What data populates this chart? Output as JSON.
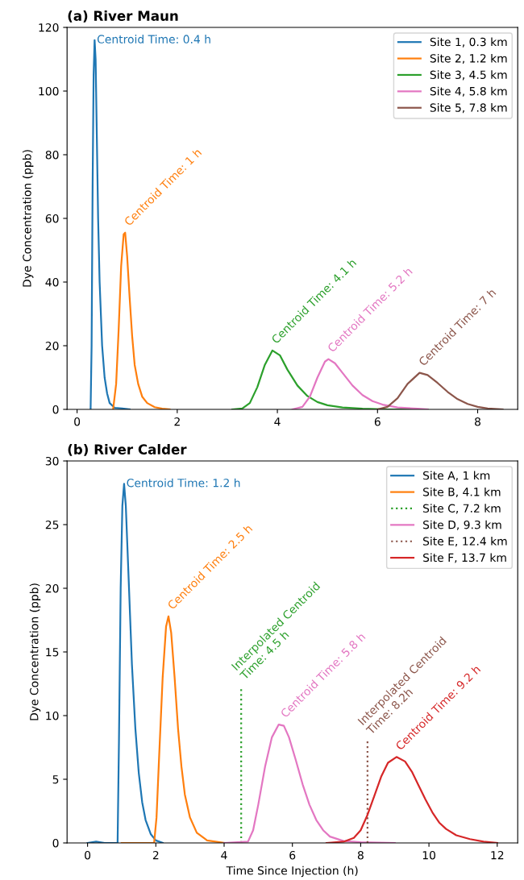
{
  "chart_data": [
    {
      "type": "line",
      "title": "(a) River Maun",
      "ylabel": "Dye Concentration (ppb)",
      "xlim": [
        -0.2,
        8.8
      ],
      "xticks": [
        0,
        2,
        4,
        6,
        8
      ],
      "ylim": [
        0,
        120
      ],
      "yticks": [
        0,
        20,
        40,
        60,
        80,
        100,
        120
      ],
      "grid": false,
      "legend": "top right",
      "series": [
        {
          "name": "Site 1, 0.3 km",
          "color": "#1f77b4",
          "x": [
            0.27,
            0.29,
            0.31,
            0.33,
            0.35,
            0.37,
            0.39,
            0.42,
            0.45,
            0.5,
            0.55,
            0.6,
            0.65,
            0.75,
            0.9,
            1.05
          ],
          "values": [
            0,
            20,
            70,
            105,
            116,
            110,
            90,
            60,
            40,
            20,
            10,
            5,
            2,
            0.5,
            0.3,
            0
          ]
        },
        {
          "name": "Site 2, 1.2 km",
          "color": "#ff7f0e",
          "x": [
            0.72,
            0.78,
            0.83,
            0.88,
            0.93,
            0.96,
            1.0,
            1.05,
            1.1,
            1.15,
            1.22,
            1.3,
            1.4,
            1.55,
            1.7,
            1.85
          ],
          "values": [
            0,
            8,
            25,
            45,
            55,
            55.5,
            48,
            35,
            23,
            14,
            8,
            4,
            2,
            0.7,
            0.2,
            0
          ]
        },
        {
          "name": "Site 3, 4.5 km",
          "color": "#2ca02c",
          "x": [
            3.1,
            3.3,
            3.45,
            3.6,
            3.75,
            3.9,
            4.05,
            4.2,
            4.4,
            4.6,
            4.8,
            5.0,
            5.3,
            5.7,
            6.2,
            7.0
          ],
          "values": [
            0,
            0.3,
            2,
            7,
            14,
            18.5,
            17,
            12.5,
            7.5,
            4.2,
            2.3,
            1.3,
            0.6,
            0.2,
            0,
            0
          ]
        },
        {
          "name": "Site 4, 5.8 km",
          "color": "#e377c2",
          "x": [
            4.3,
            4.5,
            4.65,
            4.8,
            4.95,
            5.02,
            5.15,
            5.3,
            5.5,
            5.7,
            5.9,
            6.1,
            6.4,
            6.8,
            7.0
          ],
          "values": [
            0,
            0.8,
            4,
            10,
            15,
            15.8,
            14.5,
            11.5,
            7.5,
            4.5,
            2.6,
            1.5,
            0.6,
            0.2,
            0
          ]
        },
        {
          "name": "Site 5, 7.8 km",
          "color": "#8c564b",
          "x": [
            6.0,
            6.2,
            6.4,
            6.6,
            6.84,
            7.0,
            7.2,
            7.4,
            7.6,
            7.8,
            8.0,
            8.2,
            8.5
          ],
          "values": [
            0,
            0.8,
            3.5,
            8,
            11.5,
            10.8,
            8.3,
            5.5,
            3.2,
            1.7,
            0.8,
            0.3,
            0
          ]
        }
      ],
      "annotations": [
        {
          "text": "Centroid Time: 0.4 h",
          "x": 0.35,
          "y": 116
        },
        {
          "text": "Centroid Time: 1 h",
          "x": 0.96,
          "y": 55.5
        },
        {
          "text": "Centroid Time: 4.1 h",
          "x": 3.9,
          "y": 18.5
        },
        {
          "text": "Centroid Time: 5.2 h",
          "x": 5.02,
          "y": 15.8
        },
        {
          "text": "Centroid Time: 7 h",
          "x": 6.84,
          "y": 11.5
        }
      ]
    },
    {
      "type": "line",
      "title": "(b) River Calder",
      "xlabel": "Time Since Injection (h)",
      "ylabel": "Dye Concentration (ppb)",
      "xlim": [
        -0.6,
        12.6
      ],
      "xticks": [
        0,
        2,
        4,
        6,
        8,
        10,
        12
      ],
      "ylim": [
        0,
        30
      ],
      "yticks": [
        0,
        5,
        10,
        15,
        20,
        25,
        30
      ],
      "grid": false,
      "legend": "top right",
      "series": [
        {
          "name": "Site A, 1 km",
          "color": "#1f77b4",
          "x": [
            0,
            0.25,
            0.5,
            0.88,
            0.92,
            0.97,
            1.02,
            1.07,
            1.12,
            1.2,
            1.3,
            1.4,
            1.5,
            1.6,
            1.7,
            1.85,
            2.0,
            2.2
          ],
          "values": [
            0,
            0.1,
            0,
            0,
            8,
            20,
            26.5,
            28.2,
            26.5,
            21,
            14,
            9,
            5.5,
            3.2,
            1.8,
            0.7,
            0.2,
            0
          ]
        },
        {
          "name": "Site B, 4.1 km",
          "color": "#ff7f0e",
          "x": [
            1.0,
            1.95,
            2.02,
            2.1,
            2.2,
            2.3,
            2.37,
            2.45,
            2.55,
            2.65,
            2.75,
            2.85,
            3.0,
            3.2,
            3.5,
            4.0
          ],
          "values": [
            0,
            0,
            2,
            7,
            13,
            17,
            17.8,
            16.5,
            13,
            9,
            6,
            3.8,
            2,
            0.8,
            0.2,
            0
          ]
        },
        {
          "name": "Site C, 7.2 km",
          "color": "#2ca02c",
          "line_style": "dotted",
          "x": [
            4.5,
            4.5
          ],
          "values": [
            0,
            12.3
          ]
        },
        {
          "name": "Site D, 9.3 km",
          "color": "#e377c2",
          "x": [
            4.0,
            4.7,
            4.85,
            5.0,
            5.2,
            5.4,
            5.6,
            5.75,
            5.9,
            6.1,
            6.3,
            6.5,
            6.7,
            6.9,
            7.1,
            7.5,
            8.0,
            9.0
          ],
          "values": [
            0,
            0.1,
            1,
            3,
            6,
            8.3,
            9.3,
            9.2,
            8.3,
            6.5,
            4.6,
            3,
            1.8,
            1,
            0.5,
            0.15,
            0.05,
            0
          ]
        },
        {
          "name": "Site E, 12.4 km",
          "color": "#8c564b",
          "line_style": "dotted",
          "x": [
            8.2,
            8.2
          ],
          "values": [
            0,
            8.0
          ]
        },
        {
          "name": "Site F, 13.7 km",
          "color": "#d62728",
          "x": [
            7.0,
            7.5,
            7.8,
            8.0,
            8.2,
            8.4,
            8.6,
            8.8,
            9.05,
            9.3,
            9.5,
            9.7,
            9.9,
            10.1,
            10.3,
            10.5,
            10.8,
            11.2,
            11.6,
            12.0
          ],
          "values": [
            0,
            0.1,
            0.4,
            1,
            2.2,
            3.7,
            5.2,
            6.3,
            6.75,
            6.4,
            5.6,
            4.5,
            3.4,
            2.4,
            1.6,
            1.1,
            0.6,
            0.3,
            0.1,
            0
          ]
        }
      ],
      "annotations": [
        {
          "text": "Centroid Time: 1.2 h",
          "x": 1.07,
          "y": 28.2
        },
        {
          "text": "Centroid Time: 2.5 h",
          "x": 2.37,
          "y": 17.8
        },
        {
          "text": "Interpolated Centroid\nTime: 4.5 h",
          "x": 4.5,
          "y": 12.3
        },
        {
          "text": "Centroid Time: 5.8 h",
          "x": 5.68,
          "y": 9.3
        },
        {
          "text": "Interpolated Centroid\nTime: 8.2h",
          "x": 8.2,
          "y": 8.0
        },
        {
          "text": "Centroid Time: 9.2 h",
          "x": 9.05,
          "y": 6.75
        }
      ]
    }
  ]
}
